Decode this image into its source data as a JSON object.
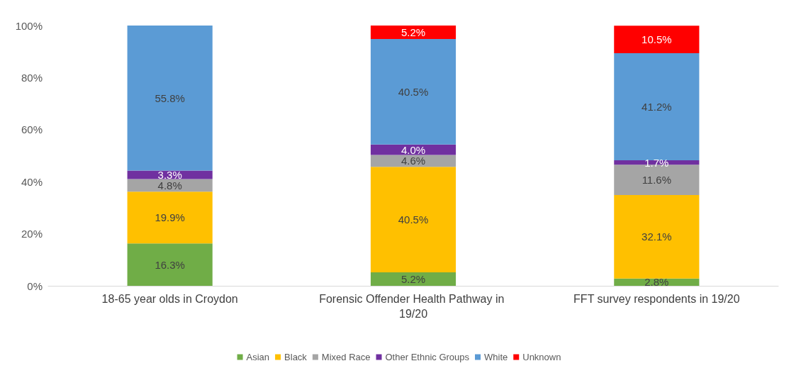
{
  "chart_data": {
    "type": "bar",
    "stacked": true,
    "legend": "bottom",
    "grid": false,
    "categories": [
      "18-65 year olds in Croydon",
      "Forensic Offender Health Pathway in 19/20",
      "FFT survey respondents in 19/20"
    ],
    "series": [
      {
        "name": "Asian",
        "color": "#70ad47",
        "values": [
          16.3,
          5.2,
          2.8
        ],
        "value_labels": [
          "16.3%",
          "5.2%",
          "2.8%"
        ]
      },
      {
        "name": "Black",
        "color": "#ffc000",
        "values": [
          19.9,
          40.5,
          32.1
        ],
        "value_labels": [
          "19.9%",
          "40.5%",
          "32.1%"
        ]
      },
      {
        "name": "Mixed Race",
        "color": "#a5a5a5",
        "values": [
          4.8,
          4.6,
          11.6
        ],
        "value_labels": [
          "4.8%",
          "4.6%",
          "11.6%"
        ]
      },
      {
        "name": "Other Ethnic Groups",
        "color": "#7030a0",
        "values": [
          3.3,
          4.0,
          1.7
        ],
        "value_labels": [
          "3.3%",
          "4.0%",
          "1.7%"
        ]
      },
      {
        "name": "White",
        "color": "#5b9bd5",
        "values": [
          55.8,
          40.5,
          41.2
        ],
        "value_labels": [
          "55.8%",
          "40.5%",
          "41.2%"
        ]
      },
      {
        "name": "Unknown",
        "color": "#ff0000",
        "values": [
          null,
          5.2,
          10.5
        ],
        "value_labels": [
          null,
          "5.2%",
          "10.5%"
        ]
      }
    ],
    "ylim": [
      0,
      100
    ],
    "yticks": [
      {
        "value": 0,
        "label": "0%"
      },
      {
        "value": 20,
        "label": "20%"
      },
      {
        "value": 40,
        "label": "40%"
      },
      {
        "value": 60,
        "label": "60%"
      },
      {
        "value": 80,
        "label": "80%"
      },
      {
        "value": 100,
        "label": "100%"
      }
    ]
  }
}
